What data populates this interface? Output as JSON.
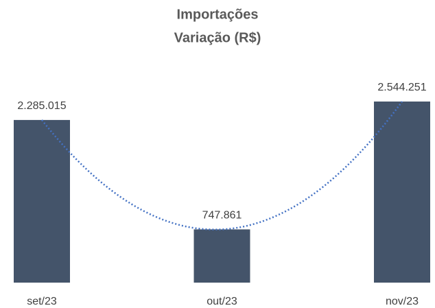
{
  "chart_data": {
    "type": "bar",
    "title": [
      "Importações",
      "Variação (R$)"
    ],
    "categories": [
      "set/23",
      "out/23",
      "nov/23"
    ],
    "values": [
      2285015,
      747861,
      2544251
    ],
    "value_labels": [
      "2.285.015",
      "747.861",
      "2.544.251"
    ],
    "color": "#44546a",
    "trendline": {
      "type": "polynomial",
      "order": 2,
      "color": "#4472c4"
    }
  }
}
